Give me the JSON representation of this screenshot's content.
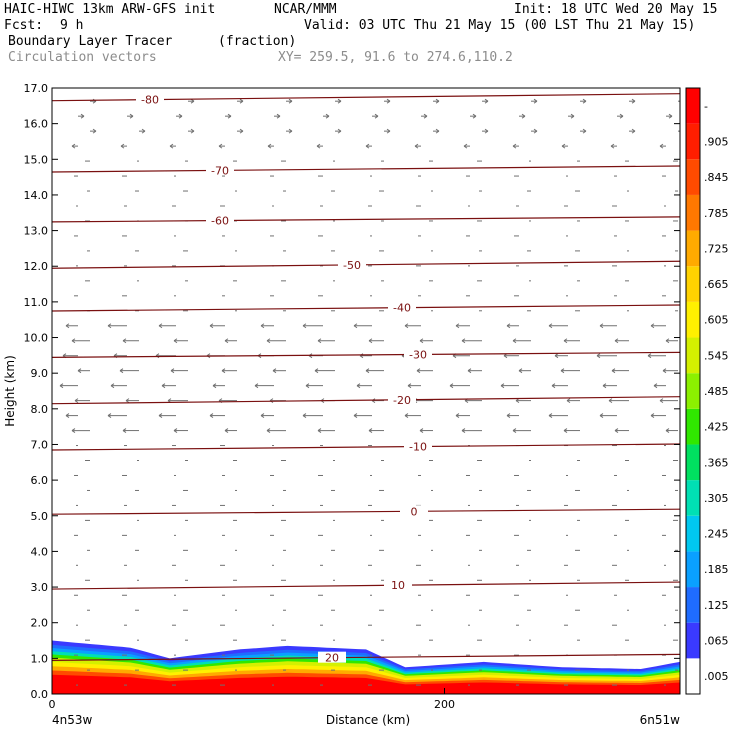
{
  "header": {
    "model": "HAIC-HIWC 13km ARW-GFS init",
    "org": "NCAR/MMM",
    "init": "Init: 18 UTC Wed 20 May 15",
    "fcst_label": "Fcst:",
    "fcst_value": "9 h",
    "valid": "Valid: 03 UTC Thu 21 May 15 (00 LST Thu 21 May 15)",
    "field": "Boundary Layer Tracer",
    "units": "(fraction)",
    "vectors": "Circulation vectors",
    "xy": "XY= 259.5, 91.6 to 274.6,110.2"
  },
  "colors": {
    "contour": "#7a1010",
    "vector": "#707070",
    "colorbar": [
      "#ffffff",
      "#3a3aff",
      "#1f6cff",
      "#0aa0ff",
      "#00c8f0",
      "#00e0b4",
      "#00e060",
      "#30e800",
      "#8cf000",
      "#d4f000",
      "#fff000",
      "#ffd200",
      "#ffaa00",
      "#ff7800",
      "#ff4b00",
      "#ff1e00",
      "#ff0000"
    ]
  },
  "chart_data": {
    "type": "cross-section",
    "xlabel": "Distance (km)",
    "ylabel": "Height (km)",
    "xlim": [
      0,
      320
    ],
    "ylim": [
      0.0,
      17.0
    ],
    "x_ticks": [
      0,
      200
    ],
    "x_endpoints": [
      "4n53w",
      "6n51w"
    ],
    "y_ticks": [
      "0.0",
      "1.0",
      "2.0",
      "3.0",
      "4.0",
      "5.0",
      "6.0",
      "7.0",
      "8.0",
      "9.0",
      "10.0",
      "11.0",
      "12.0",
      "13.0",
      "14.0",
      "15.0",
      "16.0",
      "17.0"
    ],
    "colorbar_labels": [
      ".005",
      ".065",
      ".125",
      ".185",
      ".245",
      ".305",
      ".365",
      ".425",
      ".485",
      ".545",
      ".605",
      ".665",
      ".725",
      ".785",
      ".845",
      ".905",
      "-"
    ],
    "temperature_contours": [
      {
        "label": "-80",
        "height": 16.7
      },
      {
        "label": "-70",
        "height": 14.7
      },
      {
        "label": "-60",
        "height": 13.3
      },
      {
        "label": "-50",
        "height": 12.0
      },
      {
        "label": "-40",
        "height": 10.8
      },
      {
        "label": "-30",
        "height": 9.5
      },
      {
        "label": "-20",
        "height": 8.2
      },
      {
        "label": "-10",
        "height": 6.9
      },
      {
        "label": "0",
        "height": 5.1
      },
      {
        "label": "10",
        "height": 3.0
      },
      {
        "label": "20",
        "height": 1.0
      }
    ],
    "boundary_layer_top_km": [
      {
        "x": 0,
        "top": 1.5
      },
      {
        "x": 40,
        "top": 1.3
      },
      {
        "x": 60,
        "top": 1.0
      },
      {
        "x": 95,
        "top": 1.25
      },
      {
        "x": 120,
        "top": 1.35
      },
      {
        "x": 160,
        "top": 1.25
      },
      {
        "x": 180,
        "top": 0.75
      },
      {
        "x": 220,
        "top": 0.9
      },
      {
        "x": 260,
        "top": 0.75
      },
      {
        "x": 300,
        "top": 0.7
      },
      {
        "x": 320,
        "top": 0.9
      }
    ]
  }
}
